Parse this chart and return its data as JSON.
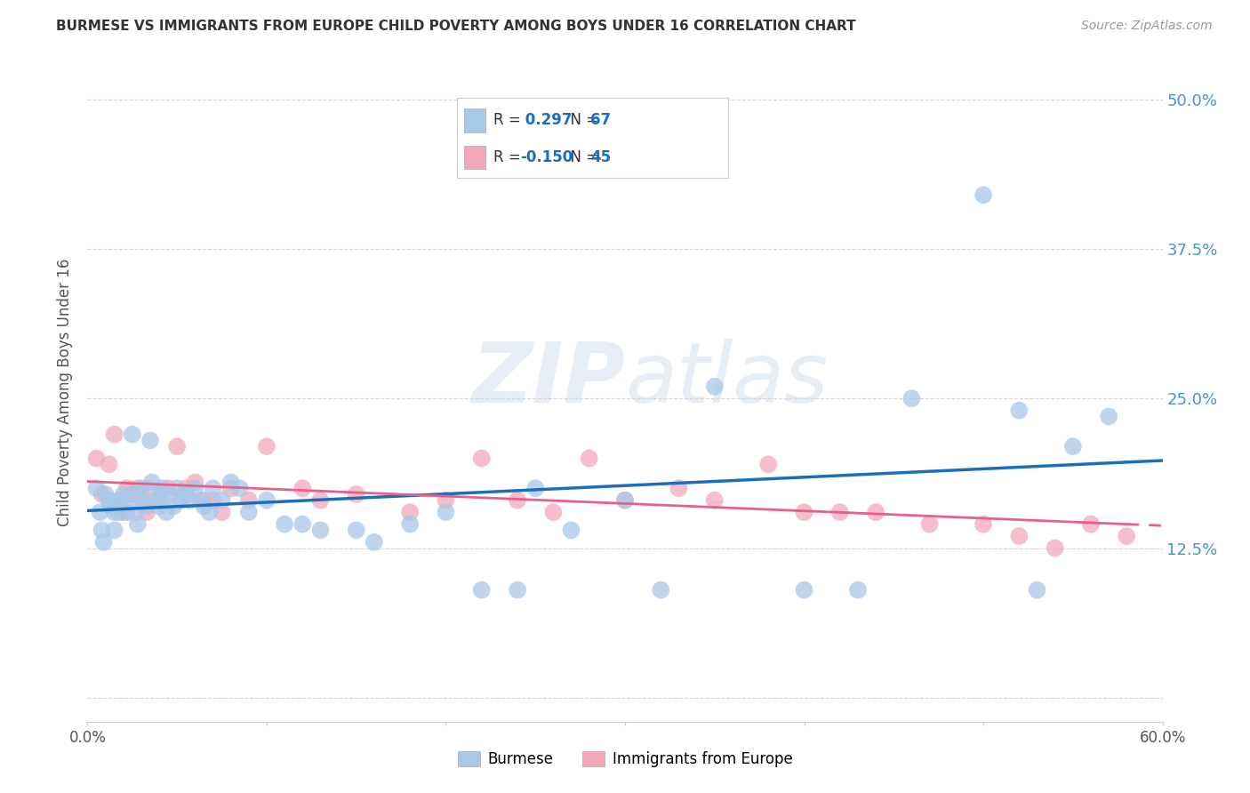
{
  "title": "BURMESE VS IMMIGRANTS FROM EUROPE CHILD POVERTY AMONG BOYS UNDER 16 CORRELATION CHART",
  "source": "Source: ZipAtlas.com",
  "ylabel": "Child Poverty Among Boys Under 16",
  "burmese_color": "#a8c8e8",
  "europe_color": "#f4a7b9",
  "burmese_line_color": "#1a6fbd",
  "europe_line_color": "#e8608a",
  "grid_color": "#d0d0d0",
  "background_color": "#ffffff",
  "tick_color": "#4a90d9",
  "watermark_color": "#c8d8e8",
  "xlim": [
    0.0,
    0.6
  ],
  "ylim": [
    -0.02,
    0.53
  ],
  "yticks": [
    0.0,
    0.125,
    0.25,
    0.375,
    0.5
  ],
  "ytick_labels": [
    "",
    "12.5%",
    "25.0%",
    "37.5%",
    "50.0%"
  ],
  "xtick_labels": [
    "0.0%",
    "",
    "",
    "",
    "",
    "",
    "60.0%"
  ],
  "burmese_x": [
    0.005,
    0.007,
    0.008,
    0.009,
    0.01,
    0.012,
    0.013,
    0.015,
    0.015,
    0.016,
    0.017,
    0.018,
    0.02,
    0.021,
    0.022,
    0.025,
    0.026,
    0.027,
    0.028,
    0.03,
    0.031,
    0.033,
    0.035,
    0.036,
    0.038,
    0.04,
    0.041,
    0.042,
    0.044,
    0.046,
    0.048,
    0.05,
    0.052,
    0.055,
    0.057,
    0.06,
    0.063,
    0.065,
    0.068,
    0.07,
    0.075,
    0.08,
    0.085,
    0.09,
    0.1,
    0.11,
    0.12,
    0.13,
    0.15,
    0.16,
    0.18,
    0.2,
    0.22,
    0.24,
    0.25,
    0.27,
    0.3,
    0.32,
    0.35,
    0.4,
    0.43,
    0.46,
    0.5,
    0.52,
    0.53,
    0.55,
    0.57
  ],
  "burmese_y": [
    0.175,
    0.155,
    0.14,
    0.13,
    0.17,
    0.165,
    0.16,
    0.155,
    0.14,
    0.16,
    0.155,
    0.165,
    0.17,
    0.165,
    0.155,
    0.22,
    0.17,
    0.155,
    0.145,
    0.175,
    0.165,
    0.16,
    0.215,
    0.18,
    0.165,
    0.16,
    0.17,
    0.175,
    0.155,
    0.17,
    0.16,
    0.175,
    0.165,
    0.17,
    0.165,
    0.175,
    0.165,
    0.16,
    0.155,
    0.175,
    0.165,
    0.18,
    0.175,
    0.155,
    0.165,
    0.145,
    0.145,
    0.14,
    0.14,
    0.13,
    0.145,
    0.155,
    0.09,
    0.09,
    0.175,
    0.14,
    0.165,
    0.09,
    0.26,
    0.09,
    0.09,
    0.25,
    0.42,
    0.24,
    0.09,
    0.21,
    0.235
  ],
  "europe_x": [
    0.005,
    0.008,
    0.012,
    0.015,
    0.018,
    0.02,
    0.022,
    0.025,
    0.028,
    0.03,
    0.033,
    0.035,
    0.04,
    0.045,
    0.05,
    0.055,
    0.06,
    0.065,
    0.07,
    0.075,
    0.08,
    0.09,
    0.1,
    0.12,
    0.13,
    0.15,
    0.18,
    0.2,
    0.22,
    0.24,
    0.26,
    0.28,
    0.3,
    0.33,
    0.35,
    0.38,
    0.4,
    0.42,
    0.44,
    0.47,
    0.5,
    0.52,
    0.54,
    0.56,
    0.58
  ],
  "europe_y": [
    0.2,
    0.17,
    0.195,
    0.22,
    0.165,
    0.155,
    0.175,
    0.17,
    0.175,
    0.165,
    0.155,
    0.175,
    0.165,
    0.175,
    0.21,
    0.175,
    0.18,
    0.165,
    0.165,
    0.155,
    0.175,
    0.165,
    0.21,
    0.175,
    0.165,
    0.17,
    0.155,
    0.165,
    0.2,
    0.165,
    0.155,
    0.2,
    0.165,
    0.175,
    0.165,
    0.195,
    0.155,
    0.155,
    0.155,
    0.145,
    0.145,
    0.135,
    0.125,
    0.145,
    0.135
  ]
}
